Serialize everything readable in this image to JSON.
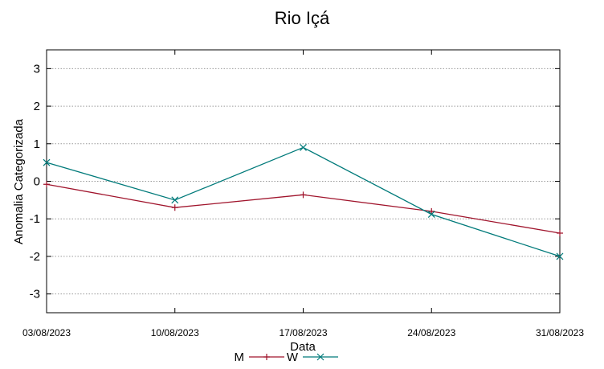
{
  "chart_data": {
    "type": "line",
    "title": "Rio Içá",
    "xlabel": "Data",
    "ylabel": "Anomalia Categorizada",
    "categories": [
      "03/08/2023",
      "10/08/2023",
      "17/08/2023",
      "24/08/2023",
      "31/08/2023"
    ],
    "ylim": [
      -3.5,
      3.5
    ],
    "yticks": [
      3,
      2,
      1,
      0,
      -1,
      -2,
      -3
    ],
    "grid": true,
    "legend_position": "bottom-center",
    "series": [
      {
        "name": "M",
        "color": "#a0142c",
        "marker": "plus",
        "values": [
          -0.08,
          -0.7,
          -0.36,
          -0.8,
          -1.38
        ]
      },
      {
        "name": "W",
        "color": "#007a7a",
        "marker": "cross",
        "values": [
          0.5,
          -0.5,
          0.9,
          -0.88,
          -2.0
        ]
      }
    ]
  }
}
